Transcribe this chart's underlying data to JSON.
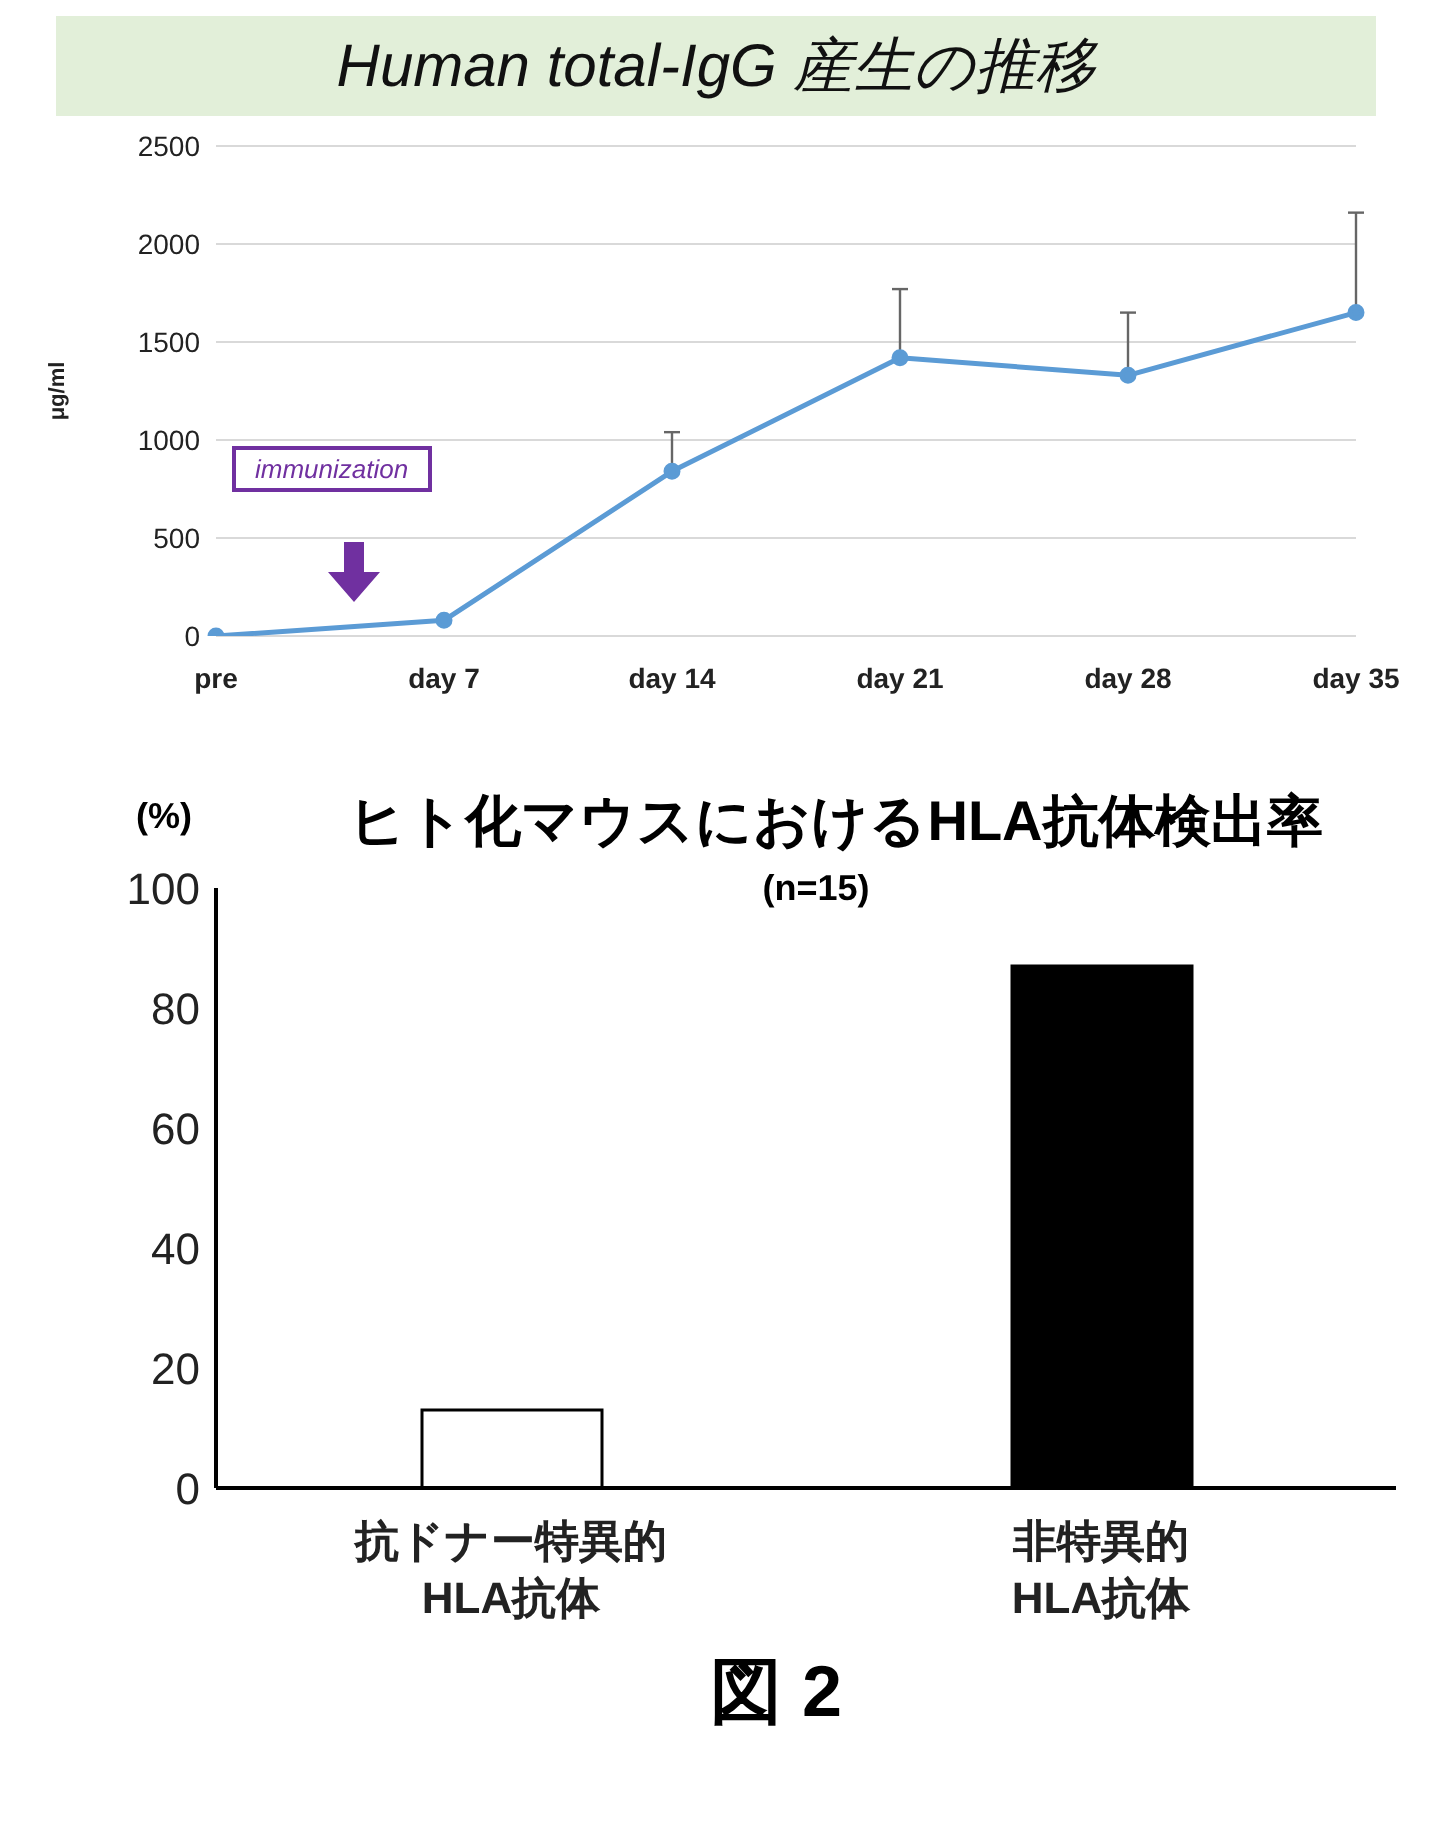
{
  "chart_data": [
    {
      "type": "line",
      "title": "Human total-IgG 産生の推移",
      "ylabel": "μg/ml",
      "categories": [
        "pre",
        "day 7",
        "day 14",
        "day 21",
        "day 28",
        "day 35"
      ],
      "series": [
        {
          "color": "#5b9bd5",
          "values": [
            0,
            80,
            840,
            1420,
            1330,
            1650
          ],
          "errors": [
            null,
            null,
            [
              840,
              1040
            ],
            [
              1420,
              1770
            ],
            [
              1330,
              1650
            ],
            [
              1650,
              2160
            ]
          ]
        }
      ],
      "ylim": [
        0,
        2500
      ],
      "yticks": [
        0,
        500,
        1000,
        1500,
        2000,
        2500
      ],
      "grid": "y",
      "marker": "circle",
      "line_style": "solid",
      "annotations": [
        "immunization"
      ]
    },
    {
      "type": "bar",
      "title": "ヒト化マウスにおけるHLA抗体検出率",
      "subtitle": "(n=15)",
      "ylabel": "(%)",
      "categories": [
        "抗ドナー特異的\nHLA抗体",
        "非特異的\nHLA抗体"
      ],
      "values": [
        13,
        87
      ],
      "colors": [
        "#ffffff",
        "#000000"
      ],
      "ylim": [
        0,
        100
      ],
      "yticks": [
        0,
        20,
        40,
        60,
        80,
        100
      ],
      "grid": false,
      "annotations": [
        "図 2"
      ]
    }
  ]
}
